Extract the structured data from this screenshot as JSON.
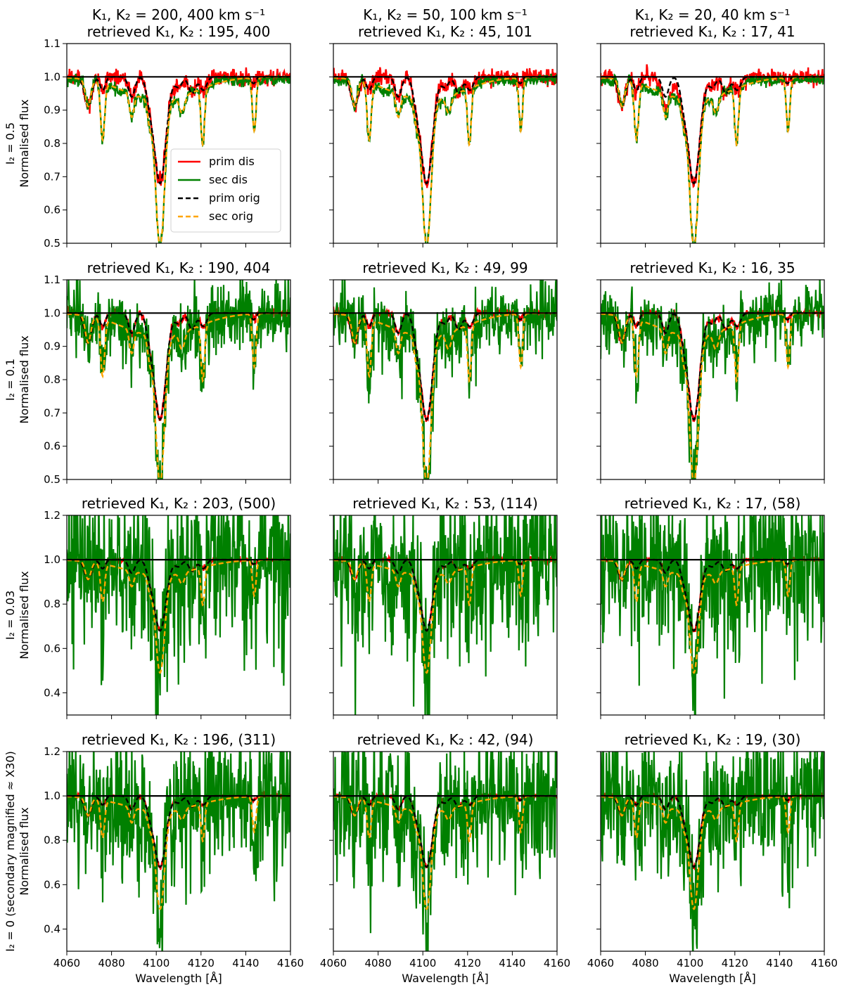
{
  "legend": [
    {
      "key": "prim_dis",
      "label": "prim dis",
      "color": "#ff0000",
      "dash": false
    },
    {
      "key": "sec_dis",
      "label": "sec dis",
      "color": "#008000",
      "dash": false
    },
    {
      "key": "prim_orig",
      "label": "prim orig",
      "color": "#000000",
      "dash": true
    },
    {
      "key": "sec_orig",
      "label": "sec orig",
      "color": "#ffa500",
      "dash": true
    }
  ],
  "x_axis": {
    "label": "Wavelength [Å]",
    "range": [
      4060,
      4160
    ],
    "ticks": [
      4060,
      4080,
      4100,
      4120,
      4140,
      4160
    ]
  },
  "continuum_level": 1.0,
  "chart_data": {
    "type": "line",
    "layout": "grid 4 rows x 3 columns, shared x axis",
    "rows": [
      {
        "ylabel_top": "I₂ = 0.5",
        "ylabel_bottom": "Normalised flux",
        "ylim": [
          0.5,
          1.1
        ],
        "yticks": [
          0.5,
          0.6,
          0.7,
          0.8,
          0.9,
          1.0,
          1.1
        ],
        "panels": [
          {
            "title_line1": "K₁, K₂ = 200, 400 km s⁻¹",
            "title_line2": "retrieved K₁, K₂ : 195, 400"
          },
          {
            "title_line1": "K₁, K₂ = 50, 100 km s⁻¹",
            "title_line2": "retrieved K₁, K₂ : 45, 101"
          },
          {
            "title_line1": "K₁, K₂ = 20, 40 km s⁻¹",
            "title_line2": "retrieved K₁, K₂ : 17, 41"
          }
        ]
      },
      {
        "ylabel_top": "I₂ = 0.1",
        "ylabel_bottom": "Normalised flux",
        "ylim": [
          0.5,
          1.1
        ],
        "yticks": [
          0.5,
          0.6,
          0.7,
          0.8,
          0.9,
          1.0,
          1.1
        ],
        "panels": [
          {
            "title_line1": "",
            "title_line2": "retrieved K₁, K₂ : 190, 404"
          },
          {
            "title_line1": "",
            "title_line2": "retrieved K₁, K₂ : 49, 99"
          },
          {
            "title_line1": "",
            "title_line2": "retrieved K₁, K₂ : 16, 35"
          }
        ]
      },
      {
        "ylabel_top": "I₂ = 0.03",
        "ylabel_bottom": "Normalised flux",
        "ylim": [
          0.3,
          1.2
        ],
        "yticks": [
          0.4,
          0.6,
          0.8,
          1.0,
          1.2
        ],
        "panels": [
          {
            "title_line1": "",
            "title_line2": "retrieved K₁, K₂ : 203, (500)"
          },
          {
            "title_line1": "",
            "title_line2": "retrieved K₁, K₂ : 53, (114)"
          },
          {
            "title_line1": "",
            "title_line2": "retrieved K₁, K₂ : 17, (58)"
          }
        ]
      },
      {
        "ylabel_top": "I₂ = 0 (secondary magnified ≈ X30)",
        "ylabel_bottom": "Normalised flux",
        "ylim": [
          0.3,
          1.2
        ],
        "yticks": [
          0.4,
          0.6,
          0.8,
          1.0,
          1.2
        ],
        "panels": [
          {
            "title_line1": "",
            "title_line2": "retrieved K₁, K₂ : 196, (311)"
          },
          {
            "title_line1": "",
            "title_line2": "retrieved K₁, K₂ : 42, (94)"
          },
          {
            "title_line1": "",
            "title_line2": "retrieved K₁, K₂ : 19, (30)"
          }
        ]
      }
    ],
    "spectral_model": {
      "primary_lines": [
        {
          "center": 4101.7,
          "depth": 0.32,
          "width": 2.6
        },
        {
          "center": 4069.5,
          "depth": 0.09,
          "width": 1.6
        },
        {
          "center": 4076.0,
          "depth": 0.04,
          "width": 1.2
        },
        {
          "center": 4089.0,
          "depth": 0.06,
          "width": 1.4
        },
        {
          "center": 4097.0,
          "depth": 0.05,
          "width": 1.5
        },
        {
          "center": 4110.0,
          "depth": 0.03,
          "width": 1.5
        },
        {
          "center": 4116.0,
          "depth": 0.05,
          "width": 1.5
        },
        {
          "center": 4121.0,
          "depth": 0.04,
          "width": 1.5
        },
        {
          "center": 4143.5,
          "depth": 0.02,
          "width": 1.0
        }
      ],
      "secondary_lines": [
        {
          "center": 4101.7,
          "depth": 0.44,
          "width": 2.0
        },
        {
          "center": 4069.5,
          "depth": 0.08,
          "width": 1.2
        },
        {
          "center": 4076.0,
          "depth": 0.17,
          "width": 0.9
        },
        {
          "center": 4089.0,
          "depth": 0.07,
          "width": 1.0
        },
        {
          "center": 4097.0,
          "depth": 0.06,
          "width": 1.0
        },
        {
          "center": 4111.5,
          "depth": 0.05,
          "width": 1.2
        },
        {
          "center": 4120.8,
          "depth": 0.17,
          "width": 0.8
        },
        {
          "center": 4143.8,
          "depth": 0.16,
          "width": 0.8
        }
      ],
      "secondary_broad_wing": {
        "center": 4101.7,
        "depth": 0.07,
        "width": 16
      },
      "noise_sigma_green": [
        0.008,
        0.05,
        0.18,
        0.16
      ]
    }
  }
}
